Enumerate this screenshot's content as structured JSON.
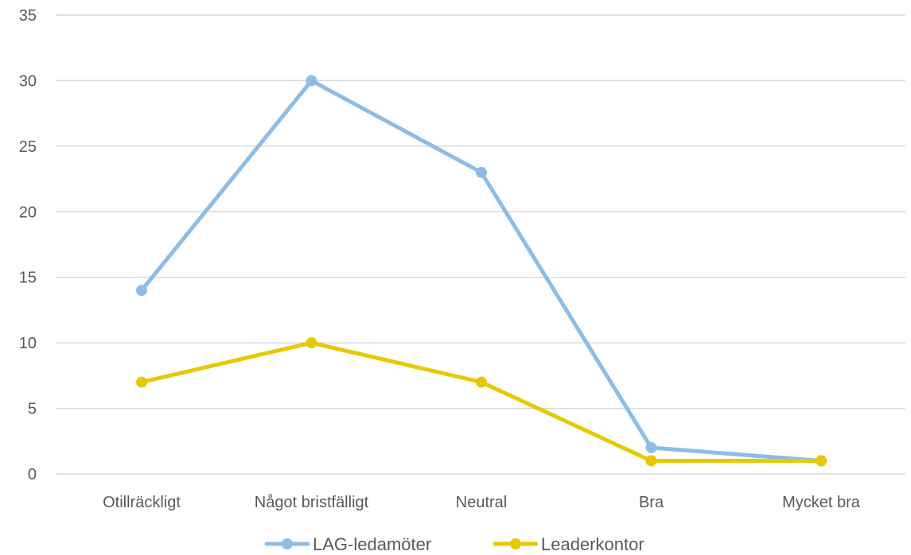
{
  "chart_data": {
    "type": "line",
    "categories": [
      "Otillräckligt",
      "Något bristfälligt",
      "Neutral",
      "Bra",
      "Mycket bra"
    ],
    "series": [
      {
        "name": "LAG-ledamöter",
        "values": [
          14,
          30,
          23,
          2,
          1
        ],
        "color": "#8cbde8"
      },
      {
        "name": "Leaderkontor",
        "values": [
          7,
          10,
          7,
          1,
          1
        ],
        "color": "#e6c900"
      }
    ],
    "ylim": [
      0,
      35
    ],
    "yticks": [
      0,
      5,
      10,
      15,
      20,
      25,
      30,
      35
    ],
    "grid": true,
    "legend_position": "bottom"
  }
}
